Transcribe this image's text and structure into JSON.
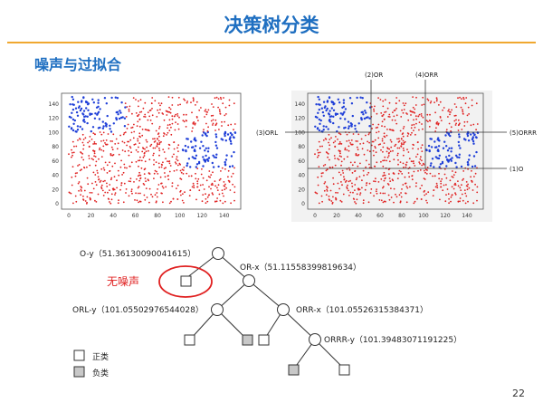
{
  "slide": {
    "title": "决策树分类",
    "subtitle": "噪声与过拟合",
    "page_number": "22"
  },
  "plots": {
    "x_ticks": [
      "0",
      "20",
      "40",
      "60",
      "80",
      "100",
      "120",
      "140"
    ],
    "y_ticks": [
      "0",
      "20",
      "40",
      "60",
      "80",
      "100",
      "120",
      "140"
    ],
    "red_color": "#e02020",
    "blue_color": "#1f3fd8",
    "split_labels": {
      "orl": "(3)ORL",
      "or": "(2)OR",
      "orr": "(4)ORR",
      "orrr": "(5)ORRR",
      "o": "(1)O"
    }
  },
  "tree": {
    "root": "O-y（51.36130090041615）",
    "or": "OR-x（51.11558399819634）",
    "orl": "ORL-y（101.05502976544028）",
    "orr": "ORR-x（101.05526315384371）",
    "orrr": "ORRR-y（101.39483071191225）",
    "no_noise": "无噪声"
  },
  "legend": {
    "positive": "正类",
    "negative": "负类"
  }
}
